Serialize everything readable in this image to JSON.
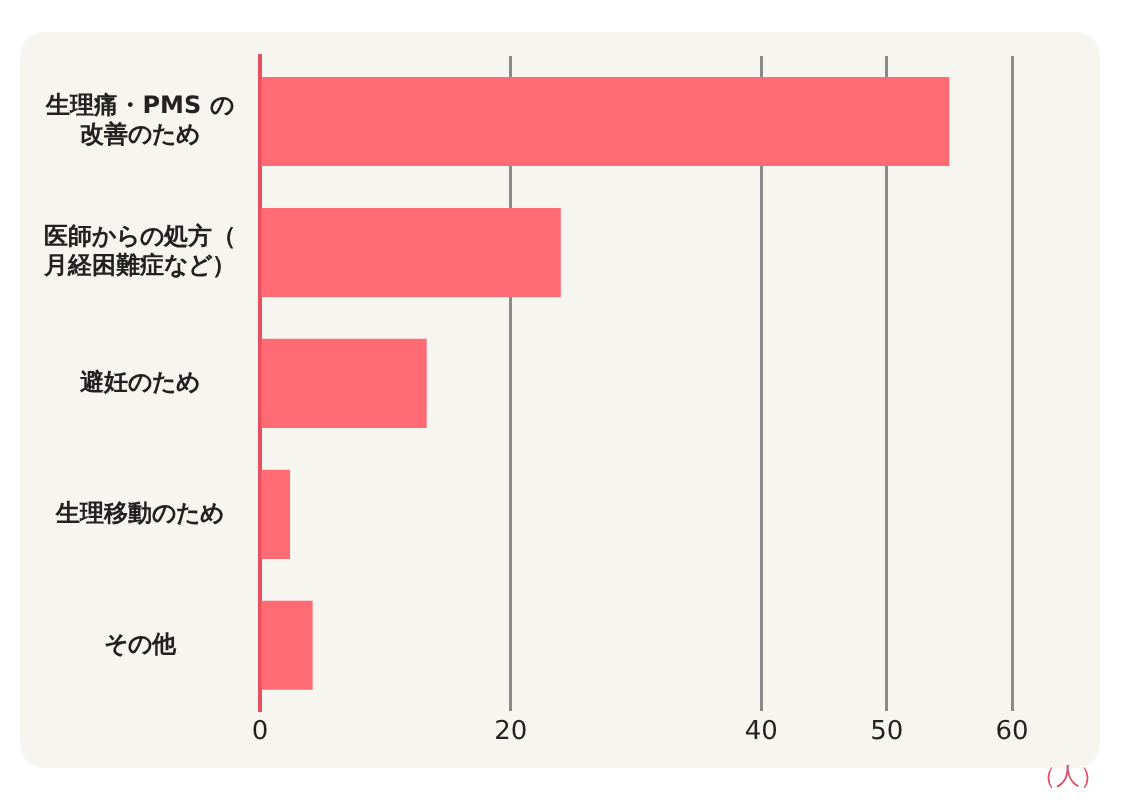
{
  "chart_data": {
    "type": "bar",
    "orientation": "horizontal",
    "xlabel": "（人）",
    "categories": [
      "生理痛・PMS の改善のため",
      "医師からの処方（月経困難症など）",
      "避妊のため",
      "生理移動のため",
      "その他"
    ],
    "values": [
      55,
      24,
      13.3,
      2.4,
      4.2
    ],
    "color": "#ff6b74",
    "xlim": [
      0,
      60
    ],
    "xticks": [
      0,
      20,
      40,
      50,
      60
    ],
    "grid": "x"
  }
}
